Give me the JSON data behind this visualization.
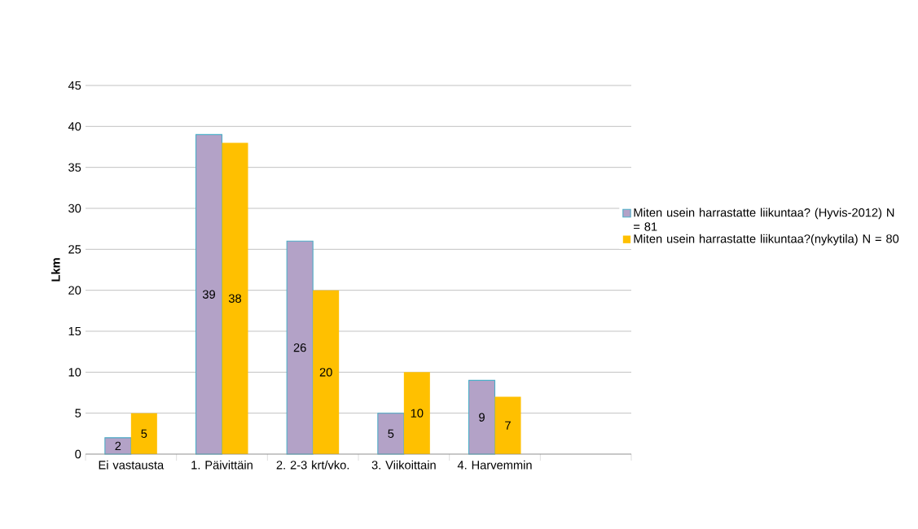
{
  "chart_data": {
    "type": "bar",
    "ylabel": "Lkm",
    "categories": [
      "Ei vastausta",
      "1. Päivittäin",
      "2. 2-3 krt/vko.",
      "3. Viikoittain",
      "4. Harvemmin",
      null
    ],
    "series": [
      {
        "name": "Miten usein harrastatte liikuntaa? (Hyvis-2012) N = 81",
        "color": "#b3a2c7",
        "values": [
          2,
          39,
          26,
          5,
          9,
          null
        ]
      },
      {
        "name": "Miten usein harrastatte liikuntaa?(nykytila) N = 80",
        "color": "#ffc000",
        "values": [
          5,
          38,
          20,
          10,
          7,
          null
        ]
      }
    ],
    "ylim": [
      0,
      45
    ],
    "yticks": [
      0,
      5,
      10,
      15,
      20,
      25,
      30,
      35,
      40,
      45
    ],
    "grid": "y",
    "legend": "right",
    "data_labels": true
  }
}
